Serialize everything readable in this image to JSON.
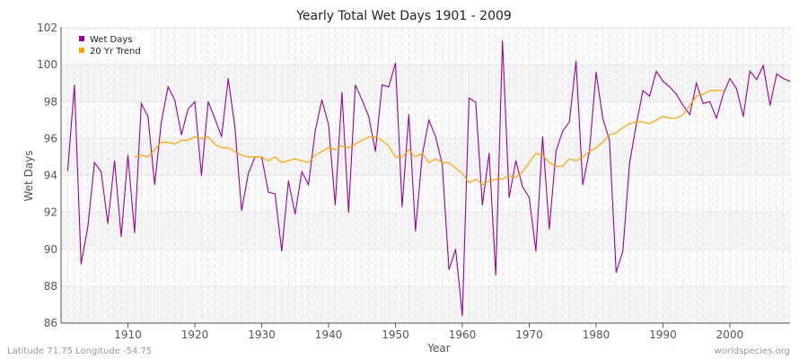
{
  "chart_data": {
    "type": "line",
    "title": "Yearly Total Wet Days 1901 - 2009",
    "xlabel": "Year",
    "ylabel": "Wet Days",
    "xlim": [
      1900,
      2009
    ],
    "ylim": [
      86,
      102
    ],
    "x_ticks": [
      1910,
      1920,
      1930,
      1940,
      1950,
      1960,
      1970,
      1980,
      1990,
      2000
    ],
    "y_ticks": [
      86,
      88,
      90,
      92,
      94,
      96,
      98,
      100,
      102
    ],
    "grid": true,
    "legend_position": "top-left",
    "series": [
      {
        "name": "Wet Days",
        "color": "#990099",
        "start_year": 1901,
        "values": [
          94.25,
          98.9,
          89.2,
          91.2,
          94.7,
          94.2,
          91.4,
          94.8,
          90.7,
          95.1,
          90.9,
          97.9,
          97.2,
          93.5,
          96.9,
          98.8,
          98.1,
          96.2,
          97.6,
          98.0,
          94.0,
          98.0,
          97.1,
          96.1,
          99.25,
          96.6,
          92.1,
          94.1,
          95.0,
          95.0,
          93.1,
          93.0,
          89.9,
          93.7,
          91.9,
          94.2,
          93.5,
          96.4,
          98.1,
          96.75,
          92.4,
          98.5,
          92.0,
          98.9,
          98.1,
          97.2,
          95.3,
          98.9,
          98.8,
          100.1,
          92.3,
          97.3,
          91.0,
          95.1,
          97.0,
          96.1,
          94.6,
          88.9,
          90.0,
          86.4,
          98.2,
          97.96,
          92.4,
          95.2,
          88.6,
          101.3,
          92.8,
          94.8,
          93.4,
          92.8,
          89.9,
          96.1,
          91.1,
          95.3,
          96.4,
          96.9,
          100.2,
          93.5,
          95.3,
          99.6,
          97.1,
          95.9,
          88.75,
          89.9,
          94.65,
          96.75,
          98.6,
          98.3,
          99.65,
          99.1,
          98.8,
          98.4,
          97.8,
          97.3,
          99.0,
          97.9,
          98.0,
          97.1,
          98.4,
          99.25,
          98.7,
          97.2,
          99.65,
          99.2,
          99.95,
          97.8,
          99.5,
          99.25,
          99.1
        ]
      },
      {
        "name": "20 Yr Trend",
        "color": "#FFA500",
        "start_year": 1911,
        "values": [
          95.0,
          95.1,
          95.0,
          95.4,
          95.8,
          95.8,
          95.7,
          95.9,
          95.9,
          96.1,
          96.0,
          96.1,
          95.7,
          95.5,
          95.5,
          95.3,
          95.1,
          95.0,
          95.0,
          95.0,
          94.8,
          95.0,
          94.7,
          94.8,
          94.9,
          94.8,
          94.7,
          95.1,
          95.3,
          95.5,
          95.4,
          95.6,
          95.5,
          95.7,
          95.9,
          96.1,
          96.1,
          95.9,
          95.6,
          95.0,
          95.0,
          95.4,
          95.0,
          95.2,
          94.7,
          94.9,
          94.7,
          94.7,
          94.4,
          94.1,
          93.6,
          93.8,
          93.5,
          93.7,
          93.8,
          93.8,
          94.0,
          93.9,
          94.2,
          94.7,
          95.2,
          95.1,
          94.7,
          94.5,
          94.5,
          94.9,
          94.8,
          95.0,
          95.3,
          95.5,
          95.8,
          96.2,
          96.3,
          96.6,
          96.8,
          96.9,
          96.9,
          96.8,
          97.0,
          97.2,
          97.1,
          97.1,
          97.3,
          97.8,
          98.3,
          98.4,
          98.6,
          98.6,
          98.6
        ]
      }
    ]
  },
  "footer": {
    "location": "Latitude 71.75 Longitude -54.75",
    "source": "worldspecies.org"
  }
}
